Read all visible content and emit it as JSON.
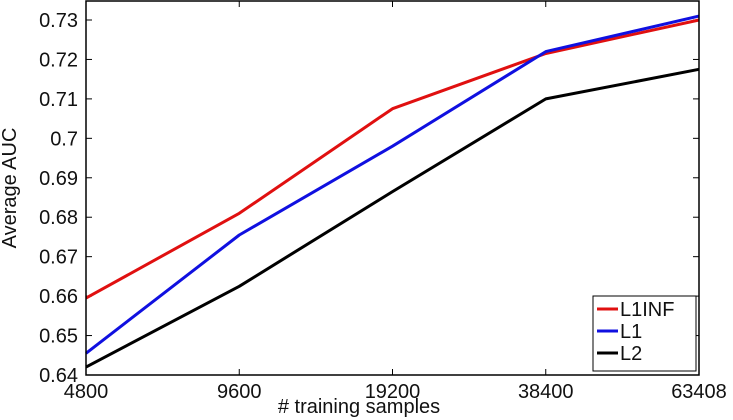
{
  "chart_data": {
    "type": "line",
    "title": "",
    "xlabel": "# training samples",
    "ylabel": "Average AUC",
    "categories": [
      "4800",
      "9600",
      "19200",
      "38400",
      "63408"
    ],
    "x_scale": "categorical (equally spaced)",
    "ylim": [
      0.64,
      0.735
    ],
    "yticks": [
      "0.64",
      "0.65",
      "0.66",
      "0.67",
      "0.68",
      "0.69",
      "0.7",
      "0.71",
      "0.72",
      "0.73"
    ],
    "grid": false,
    "legend_position": "lower right",
    "series": [
      {
        "name": "L1INF",
        "color": "#e01010",
        "values": [
          0.6595,
          0.681,
          0.7075,
          0.7215,
          0.73
        ]
      },
      {
        "name": "L1",
        "color": "#1010e0",
        "values": [
          0.6455,
          0.6755,
          0.698,
          0.722,
          0.731
        ]
      },
      {
        "name": "L2",
        "color": "#000000",
        "values": [
          0.642,
          0.6625,
          0.6865,
          0.71,
          0.7175
        ]
      }
    ]
  }
}
